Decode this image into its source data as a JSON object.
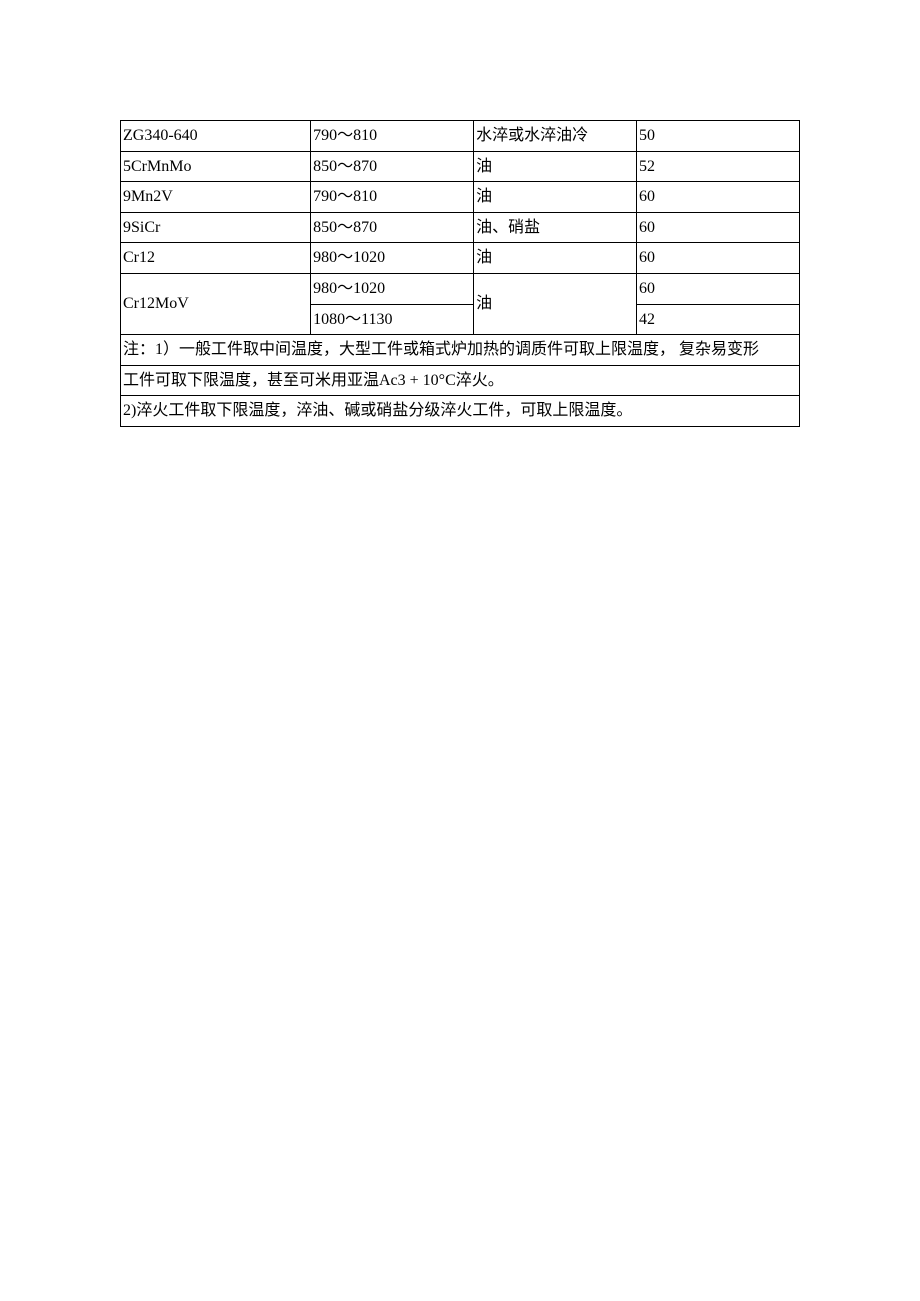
{
  "table": {
    "columns": [
      "c1",
      "c2",
      "c3",
      "c4"
    ],
    "column_widths_pct": [
      28,
      24,
      24,
      24
    ],
    "border_color": "#000000",
    "background_color": "#ffffff",
    "text_color": "#000000",
    "font_family": "SimSun",
    "font_size_pt": 12,
    "rows": [
      {
        "c1": "ZG340-640",
        "c2": "790〜810",
        "c3": "水淬或水淬油冷",
        "c4": "50"
      },
      {
        "c1": "5CrMnMo",
        "c2": "850〜870",
        "c3": "油",
        "c4": "52"
      },
      {
        "c1": "9Mn2V",
        "c2": "790〜810",
        "c3": "油",
        "c4": "60"
      },
      {
        "c1": "9SiCr",
        "c2": "850〜870",
        "c3": "油、硝盐",
        "c4": "60"
      },
      {
        "c1": "Cr12",
        "c2": "980〜1020",
        "c3": "油",
        "c4": "60"
      }
    ],
    "cr12mov": {
      "c1": "Cr12MoV",
      "c2a": "980〜1020",
      "c2b": "1080〜1130",
      "c3": "油",
      "c4a": "60",
      "c4b": "42"
    },
    "notes": [
      "注：1）一般工件取中间温度，大型工件或箱式炉加热的调质件可取上限温度，  复杂易变形",
      "工件可取下限温度，甚至可米用亚温Ac3 + 10°C淬火。",
      "2)淬火工件取下限温度，淬油、碱或硝盐分级淬火工件，可取上限温度。"
    ]
  }
}
